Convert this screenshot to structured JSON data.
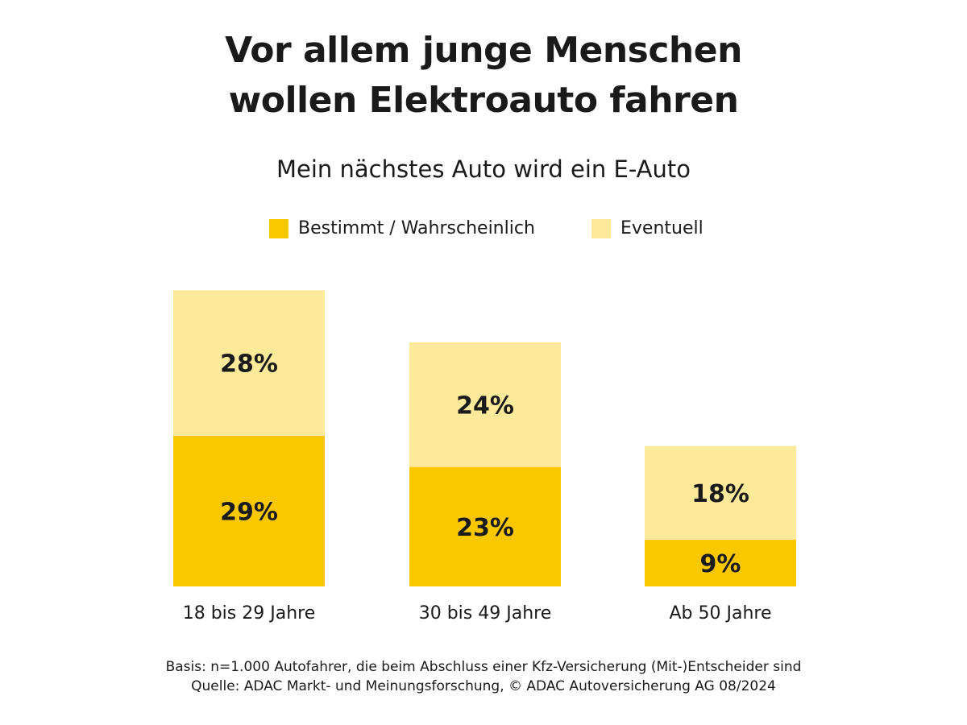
{
  "title_lines": [
    "Vor allem junge Menschen",
    "wollen Elektroauto fahren"
  ],
  "subtitle": "Mein nächstes Auto wird ein E-Auto",
  "colors": {
    "bestimmt": "#f9c800",
    "eventuell": "#fde99a",
    "text": "#1a1a1a"
  },
  "chart_data": {
    "type": "bar",
    "stacked": true,
    "title": "Vor allem junge Menschen wollen Elektroauto fahren",
    "subtitle": "Mein nächstes Auto wird ein E-Auto",
    "categories": [
      "18 bis 29 Jahre",
      "30 bis 49 Jahre",
      "Ab 50 Jahre"
    ],
    "series": [
      {
        "name": "Bestimmt / Wahrscheinlich",
        "values": [
          29,
          23,
          9
        ],
        "labels": [
          "29%",
          "23%",
          "9%"
        ],
        "color": "#f9c800"
      },
      {
        "name": "Eventuell",
        "values": [
          28,
          24,
          18
        ],
        "labels": [
          "28%",
          "24%",
          "18%"
        ],
        "color": "#fde99a"
      }
    ],
    "unit": "%",
    "legend_position": "top-center",
    "grid": false,
    "axes_visible": false
  },
  "footer": [
    "Basis: n=1.000 Autofahrer, die beim Abschluss einer Kfz-Versicherung (Mit-)Entscheider sind",
    "Quelle: ADAC Markt- und Meinungsforschung, © ADAC Autoversicherung AG 08/2024"
  ]
}
